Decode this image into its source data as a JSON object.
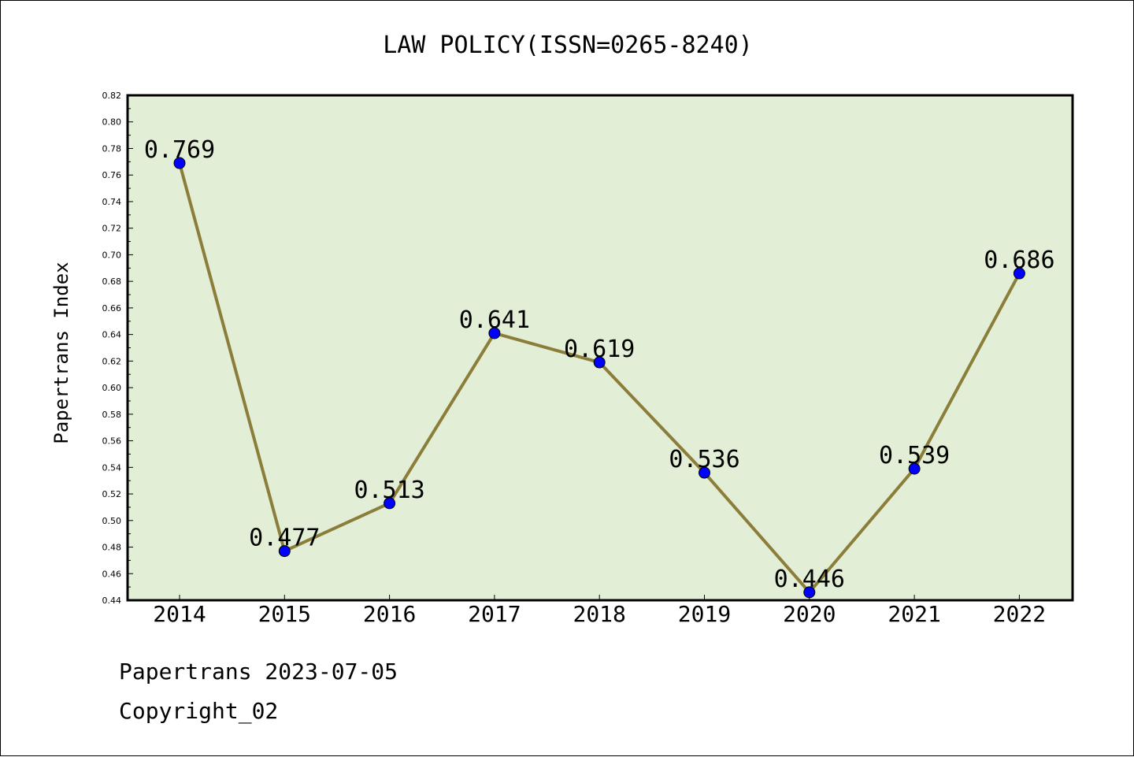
{
  "chart_data": {
    "type": "line",
    "title": "LAW POLICY(ISSN=0265-8240)",
    "xlabel": "",
    "ylabel": "Papertrans Index",
    "categories": [
      "2014",
      "2015",
      "2016",
      "2017",
      "2018",
      "2019",
      "2020",
      "2021",
      "2022"
    ],
    "values": [
      0.769,
      0.477,
      0.513,
      0.641,
      0.619,
      0.536,
      0.446,
      0.539,
      0.686
    ],
    "ylim": [
      0.44,
      0.82
    ],
    "yticks": [
      "0.44",
      "0.46",
      "0.48",
      "0.50",
      "0.52",
      "0.54",
      "0.56",
      "0.58",
      "0.60",
      "0.62",
      "0.64",
      "0.66",
      "0.68",
      "0.70",
      "0.72",
      "0.74",
      "0.76",
      "0.78",
      "0.80",
      "0.82"
    ],
    "grid": false,
    "legend": "none",
    "colors": {
      "plot_background": "#e2efd6",
      "line": "#8b7d3a",
      "marker": "#0000ff"
    }
  },
  "footer": {
    "line1": "Papertrans 2023-07-05",
    "line2": "Copyright_02"
  }
}
